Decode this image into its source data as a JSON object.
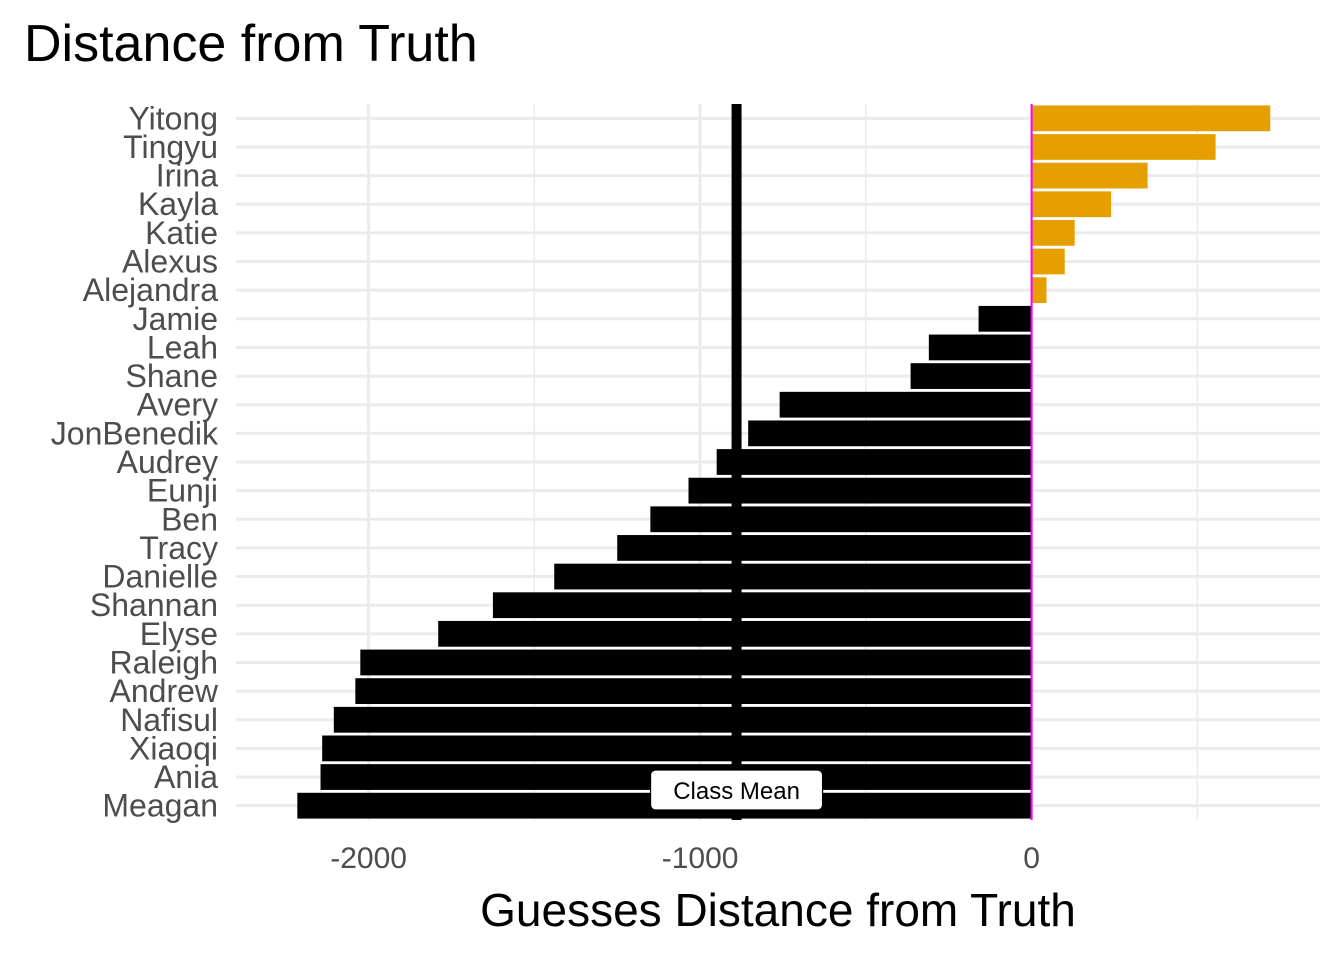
{
  "chart_data": {
    "type": "bar",
    "orientation": "horizontal",
    "title": "Distance from Truth",
    "xlabel": "Guesses Distance from Truth",
    "ylabel": "",
    "xlim": [
      -2400,
      870
    ],
    "x_ticks": [
      -2000,
      -1000,
      0
    ],
    "x_tick_labels": [
      "-2000",
      "-1000",
      "0"
    ],
    "grid": true,
    "categories": [
      "Yitong",
      "Tingyu",
      "Irina",
      "Kayla",
      "Katie",
      "Alexus",
      "Alejandra",
      "Jamie",
      "Leah",
      "Shane",
      "Avery",
      "JonBenedik",
      "Audrey",
      "Eunji",
      "Ben",
      "Tracy",
      "Danielle",
      "Shannan",
      "Elyse",
      "Raleigh",
      "Andrew",
      "Nafisul",
      "Xiaoqi",
      "Ania",
      "Meagan"
    ],
    "values": [
      720,
      555,
      350,
      240,
      130,
      100,
      45,
      -160,
      -310,
      -365,
      -760,
      -855,
      -950,
      -1035,
      -1150,
      -1250,
      -1440,
      -1625,
      -1790,
      -2025,
      -2040,
      -2105,
      -2140,
      -2145,
      -2215
    ],
    "colors": {
      "positive": "#E69F00",
      "negative": "#000000",
      "zero_line": "#FF00FF",
      "mean_line": "#000000",
      "grid": "#EBEBEB"
    },
    "mean_value": -890,
    "annotations": [
      {
        "text": "Class Mean",
        "x": -890
      }
    ]
  }
}
